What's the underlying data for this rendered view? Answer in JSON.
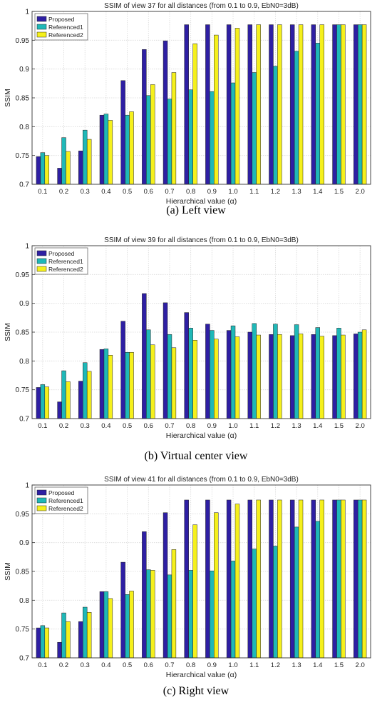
{
  "colors": {
    "Proposed": "#2e1fa3",
    "Referenced1": "#1fb8b8",
    "Referenced2": "#f5f01c"
  },
  "chart_data": [
    {
      "type": "bar",
      "title": "SSIM of view 37 for all distances (from 0.1 to 0.9, EbN0=3dB)",
      "xlabel": "Hierarchical value (α)",
      "ylabel": "SSIM",
      "ylim": [
        0.7,
        1
      ],
      "yticks": [
        "0.7",
        "0.75",
        "0.8",
        "0.85",
        "0.9",
        "0.95",
        "1"
      ],
      "grid": true,
      "legend": "top-left",
      "categories": [
        "0.1",
        "0.2",
        "0.3",
        "0.4",
        "0.5",
        "0.6",
        "0.7",
        "0.8",
        "0.9",
        "1.0",
        "1.1",
        "1.2",
        "1.3",
        "1.4",
        "1.5",
        "2.0"
      ],
      "series": [
        {
          "name": "Proposed",
          "values": [
            0.748,
            0.728,
            0.758,
            0.82,
            0.88,
            0.934,
            0.949,
            0.977,
            0.977,
            0.977,
            0.977,
            0.977,
            0.977,
            0.977,
            0.977,
            0.977
          ]
        },
        {
          "name": "Referenced1",
          "values": [
            0.755,
            0.781,
            0.794,
            0.822,
            0.82,
            0.854,
            0.848,
            0.864,
            0.861,
            0.876,
            0.894,
            0.905,
            0.931,
            0.945,
            0.977,
            0.977
          ]
        },
        {
          "name": "Referenced2",
          "values": [
            0.75,
            0.757,
            0.778,
            0.811,
            0.826,
            0.873,
            0.894,
            0.944,
            0.959,
            0.971,
            0.977,
            0.977,
            0.977,
            0.977,
            0.977,
            0.977
          ]
        }
      ],
      "caption": "(a) Left view"
    },
    {
      "type": "bar",
      "title": "SSIM of view 39 for all distances (from 0.1 to 0.9, EbN0=3dB)",
      "xlabel": "Hierarchical value (α)",
      "ylabel": "SSIM",
      "ylim": [
        0.7,
        1
      ],
      "yticks": [
        "0.7",
        "0.75",
        "0.8",
        "0.85",
        "0.9",
        "0.95",
        "1"
      ],
      "grid": true,
      "legend": "top-left",
      "categories": [
        "0.1",
        "0.2",
        "0.3",
        "0.4",
        "0.5",
        "0.6",
        "0.7",
        "0.8",
        "0.9",
        "1.0",
        "1.1",
        "1.2",
        "1.3",
        "1.4",
        "1.5",
        "2.0"
      ],
      "series": [
        {
          "name": "Proposed",
          "values": [
            0.754,
            0.729,
            0.765,
            0.82,
            0.869,
            0.917,
            0.901,
            0.884,
            0.864,
            0.853,
            0.85,
            0.846,
            0.844,
            0.846,
            0.844,
            0.847
          ]
        },
        {
          "name": "Referenced1",
          "values": [
            0.759,
            0.783,
            0.797,
            0.821,
            0.815,
            0.854,
            0.846,
            0.857,
            0.853,
            0.861,
            0.865,
            0.864,
            0.863,
            0.858,
            0.857,
            0.85
          ]
        },
        {
          "name": "Referenced2",
          "values": [
            0.755,
            0.764,
            0.782,
            0.81,
            0.815,
            0.828,
            0.823,
            0.836,
            0.838,
            0.842,
            0.845,
            0.846,
            0.847,
            0.843,
            0.845,
            0.854
          ]
        }
      ],
      "caption": "(b) Virtual center view"
    },
    {
      "type": "bar",
      "title": "SSIM of view 41 for all distances (from 0.1 to 0.9, EbN0=3dB)",
      "xlabel": "Hierarchical value (α)",
      "ylabel": "SSIM",
      "ylim": [
        0.7,
        1
      ],
      "yticks": [
        "0.7",
        "0.75",
        "0.8",
        "0.85",
        "0.9",
        "0.95",
        "1"
      ],
      "grid": true,
      "legend": "top-left",
      "categories": [
        "0.1",
        "0.2",
        "0.3",
        "0.4",
        "0.5",
        "0.6",
        "0.7",
        "0.8",
        "0.9",
        "1.0",
        "1.1",
        "1.2",
        "1.3",
        "1.4",
        "1.5",
        "2.0"
      ],
      "series": [
        {
          "name": "Proposed",
          "values": [
            0.752,
            0.727,
            0.763,
            0.815,
            0.866,
            0.919,
            0.952,
            0.974,
            0.974,
            0.974,
            0.974,
            0.974,
            0.974,
            0.974,
            0.974,
            0.974
          ]
        },
        {
          "name": "Referenced1",
          "values": [
            0.756,
            0.778,
            0.788,
            0.815,
            0.81,
            0.853,
            0.844,
            0.852,
            0.851,
            0.868,
            0.889,
            0.894,
            0.927,
            0.937,
            0.974,
            0.974
          ]
        },
        {
          "name": "Referenced2",
          "values": [
            0.752,
            0.763,
            0.779,
            0.803,
            0.816,
            0.852,
            0.888,
            0.931,
            0.952,
            0.967,
            0.974,
            0.974,
            0.974,
            0.974,
            0.974,
            0.974
          ]
        }
      ],
      "caption": "(c) Right view"
    }
  ]
}
